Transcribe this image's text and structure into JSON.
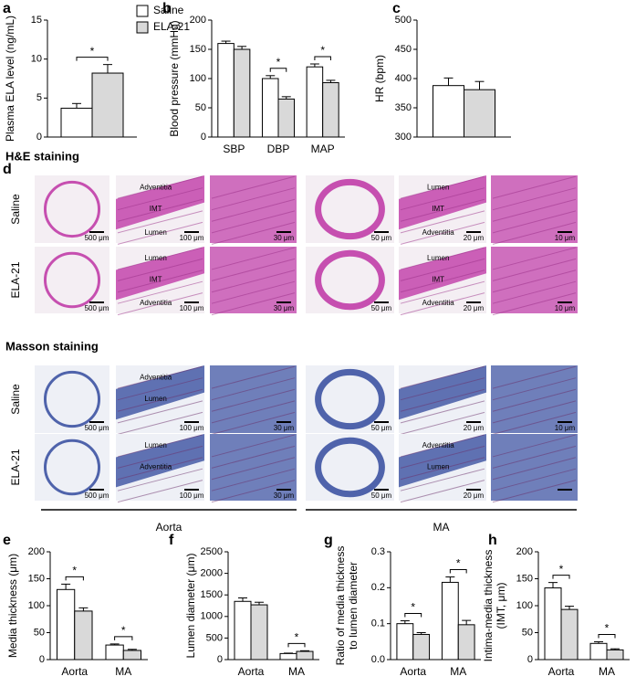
{
  "chart_data": [
    {
      "type": "bar",
      "panel": "a",
      "ylabel": [
        "Plasma ELA level (ng/mL)"
      ],
      "categories": [
        null
      ],
      "series": [
        {
          "name": "Saline",
          "color": "#ffffff",
          "values": [
            3.7
          ],
          "errors": [
            0.6
          ]
        },
        {
          "name": "ELA-21",
          "color": "#d9d9d9",
          "values": [
            8.2
          ],
          "errors": [
            1.1
          ]
        }
      ],
      "marks": [
        "*"
      ],
      "ylim": [
        0,
        15
      ],
      "yticks": [
        0,
        5,
        10,
        15
      ],
      "legend": "top-right"
    },
    {
      "type": "bar",
      "panel": "b",
      "ylabel": [
        "Blood pressure (mmHg)"
      ],
      "categories": [
        "SBP",
        "DBP",
        "MAP"
      ],
      "series": [
        {
          "name": "Saline",
          "color": "#ffffff",
          "values": [
            160,
            100,
            120
          ],
          "errors": [
            4,
            5,
            5
          ]
        },
        {
          "name": "ELA-21",
          "color": "#d9d9d9",
          "values": [
            150,
            65,
            93
          ],
          "errors": [
            5,
            4,
            4
          ]
        }
      ],
      "marks": [
        null,
        "*",
        "*"
      ],
      "ylim": [
        0,
        200
      ],
      "yticks": [
        0,
        50,
        100,
        150,
        200
      ]
    },
    {
      "type": "bar",
      "panel": "c",
      "ylabel": [
        "HR (bpm)"
      ],
      "categories": [
        null
      ],
      "series": [
        {
          "name": "Saline",
          "color": "#ffffff",
          "values": [
            388
          ],
          "errors": [
            13
          ]
        },
        {
          "name": "ELA-21",
          "color": "#d9d9d9",
          "values": [
            381
          ],
          "errors": [
            14
          ]
        }
      ],
      "marks": [
        null
      ],
      "ylim": [
        300,
        500
      ],
      "yticks": [
        300,
        350,
        400,
        450,
        500
      ]
    },
    {
      "type": "bar",
      "panel": "e",
      "ylabel": [
        "Media thickness (μm)"
      ],
      "categories": [
        "Aorta",
        "MA"
      ],
      "series": [
        {
          "name": "Saline",
          "color": "#ffffff",
          "values": [
            130,
            27
          ],
          "errors": [
            10,
            2
          ]
        },
        {
          "name": "ELA-21",
          "color": "#d9d9d9",
          "values": [
            90,
            17
          ],
          "errors": [
            6,
            2
          ]
        }
      ],
      "marks": [
        "*",
        "*"
      ],
      "ylim": [
        0,
        200
      ],
      "yticks": [
        0,
        50,
        100,
        150,
        200
      ]
    },
    {
      "type": "bar",
      "panel": "f",
      "ylabel": [
        "Lumen diameter (μm)"
      ],
      "categories": [
        "Aorta",
        "MA"
      ],
      "series": [
        {
          "name": "Saline",
          "color": "#ffffff",
          "values": [
            1350,
            140
          ],
          "errors": [
            80,
            10
          ]
        },
        {
          "name": "ELA-21",
          "color": "#d9d9d9",
          "values": [
            1270,
            190
          ],
          "errors": [
            60,
            15
          ]
        }
      ],
      "marks": [
        null,
        "*"
      ],
      "ylim": [
        0,
        2500
      ],
      "yticks": [
        0,
        500,
        1000,
        1500,
        2000,
        2500
      ]
    },
    {
      "type": "bar",
      "panel": "g",
      "ylabel": [
        "Ratio of media thickness",
        "to lumen diameter"
      ],
      "categories": [
        "Aorta",
        "MA"
      ],
      "series": [
        {
          "name": "Saline",
          "color": "#ffffff",
          "values": [
            0.1,
            0.215
          ],
          "errors": [
            0.008,
            0.015
          ]
        },
        {
          "name": "ELA-21",
          "color": "#d9d9d9",
          "values": [
            0.07,
            0.097
          ],
          "errors": [
            0.005,
            0.012
          ]
        }
      ],
      "marks": [
        "*",
        "*"
      ],
      "ylim": [
        0,
        0.3
      ],
      "yticks": [
        {
          "value": 0,
          "label": "0.0"
        },
        0.1,
        0.2,
        0.3
      ]
    },
    {
      "type": "bar",
      "panel": "h",
      "ylabel": [
        "Intima-media thickness",
        "(IMT, μm)"
      ],
      "categories": [
        "Aorta",
        "MA"
      ],
      "series": [
        {
          "name": "Saline",
          "color": "#ffffff",
          "values": [
            133,
            30
          ],
          "errors": [
            10,
            3
          ]
        },
        {
          "name": "ELA-21",
          "color": "#d9d9d9",
          "values": [
            93,
            18
          ],
          "errors": [
            6,
            2
          ]
        }
      ],
      "marks": [
        "*",
        "*"
      ],
      "ylim": [
        0,
        200
      ],
      "yticks": [
        0,
        50,
        100,
        150,
        200
      ]
    }
  ],
  "panel_d": {
    "panel": "d",
    "groups": [
      "Aorta",
      "MA"
    ],
    "sections": [
      {
        "title": "H&E staining",
        "rows": [
          {
            "label": "Saline",
            "images": [
              {
                "scale": "500 μm"
              },
              {
                "labels": [
                  "Adventitia",
                  "IMT",
                  "Lumen"
                ],
                "scale": "100 μm"
              },
              {
                "scale": "30 μm"
              },
              {
                "scale": "50 μm"
              },
              {
                "labels": [
                  "Lumen",
                  "IMT",
                  "Adventitia"
                ],
                "scale": "20 μm"
              },
              {
                "scale": "10 μm"
              }
            ]
          },
          {
            "label": "ELA-21",
            "images": [
              {
                "scale": "500 μm"
              },
              {
                "labels": [
                  "Lumen",
                  "IMT",
                  "Adventitia"
                ],
                "scale": "100 μm"
              },
              {
                "scale": "30 μm"
              },
              {
                "scale": "50 μm"
              },
              {
                "labels": [
                  "Lumen",
                  "IMT",
                  "Adventitia"
                ],
                "scale": "20 μm"
              },
              {
                "scale": "10 μm"
              }
            ]
          }
        ]
      },
      {
        "title": "Masson staining",
        "rows": [
          {
            "label": "Saline",
            "images": [
              {
                "scale": "500 μm"
              },
              {
                "labels": [
                  "Adventitia",
                  "Lumen"
                ],
                "scale": "100 μm"
              },
              {
                "scale": "30 μm"
              },
              {
                "scale": "50 μm"
              },
              {
                "scale": "20 μm"
              },
              {
                "scale": "10 μm"
              }
            ]
          },
          {
            "label": "ELA-21",
            "images": [
              {
                "scale": "500 μm"
              },
              {
                "labels": [
                  "Lumen",
                  "Adventitia"
                ],
                "scale": "100 μm"
              },
              {
                "scale": "30 μm"
              },
              {
                "scale": "50 μm"
              },
              {
                "labels": [
                  "Adventitia",
                  "Lumen"
                ],
                "scale": "20 μm"
              },
              {}
            ]
          }
        ]
      }
    ]
  }
}
